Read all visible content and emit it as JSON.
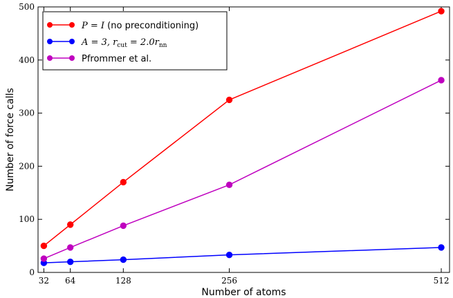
{
  "chart_data": {
    "type": "line",
    "xlabel": "Number of atoms",
    "ylabel": "Number of force calls",
    "xlim": [
      25,
      522
    ],
    "ylim": [
      0,
      500
    ],
    "xticks": [
      32,
      64,
      128,
      256,
      512
    ],
    "yticks": [
      0,
      100,
      200,
      300,
      400,
      500
    ],
    "x": [
      32,
      64,
      128,
      256,
      512
    ],
    "legend_position": "top-left",
    "series": [
      {
        "key": "no-precond",
        "color": "#ff0000",
        "label": {
          "math": "P = I",
          "text": " (no preconditioning)"
        },
        "values": [
          50,
          90,
          170,
          325,
          492
        ]
      },
      {
        "key": "a3",
        "color": "#0000ff",
        "label": {
          "math": "A = 3, r",
          "sub": "cut",
          "math2": " = 2.0r",
          "sub2": "nn"
        },
        "values": [
          18,
          20,
          24,
          33,
          47
        ]
      },
      {
        "key": "pfrommer",
        "color": "#bf00bf",
        "label": {
          "text": "Pfrommer et al."
        },
        "values": [
          26,
          47,
          88,
          165,
          362
        ]
      }
    ]
  }
}
